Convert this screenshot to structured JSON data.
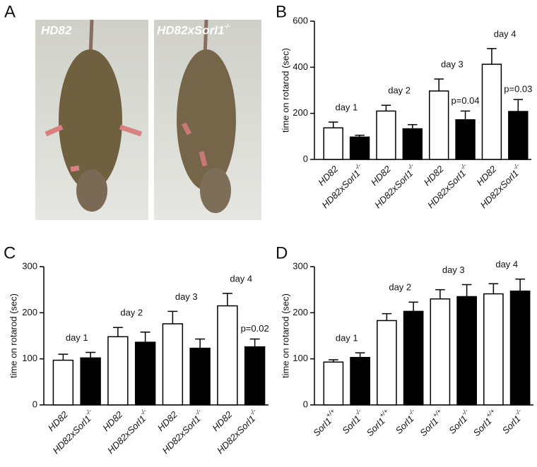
{
  "photo_panel": {
    "label": "A",
    "photos": [
      {
        "caption": "HD82"
      },
      {
        "caption": "HD82xSorl1-/-"
      }
    ]
  },
  "chart_data": [
    {
      "type": "bar",
      "panel_label": "B",
      "ylabel": "time on rotarod (sec)",
      "categories": [
        "HD82",
        "HD82xSorl1-/-",
        "HD82",
        "HD82xSorl1-/-",
        "HD82",
        "HD82xSorl1-/-",
        "HD82",
        "HD82xSorl1-/-"
      ],
      "values": [
        137,
        97,
        210,
        133,
        297,
        172,
        413,
        208
      ],
      "errors": [
        25,
        8,
        25,
        18,
        52,
        38,
        68,
        52
      ],
      "colors": [
        "#ffffff",
        "#000000",
        "#ffffff",
        "#000000",
        "#ffffff",
        "#000000",
        "#ffffff",
        "#000000"
      ],
      "group_labels": [
        "day 1",
        "day 2",
        "day 3",
        "day 4"
      ],
      "p_labels": [
        null,
        null,
        null,
        null,
        null,
        "p=0.04",
        null,
        "p=0.03"
      ],
      "ylim": [
        0,
        600
      ],
      "yticks": [
        0,
        200,
        400,
        600
      ]
    },
    {
      "type": "bar",
      "panel_label": "C",
      "ylabel": "time on rotarod (sec)",
      "categories": [
        "HD82",
        "HD82xSorl1-/-",
        "HD82",
        "HD82xSorl1-/-",
        "HD82",
        "HD82xSorl1-/-",
        "HD82",
        "HD82xSorl1-/-"
      ],
      "values": [
        97,
        102,
        148,
        136,
        176,
        123,
        215,
        126
      ],
      "errors": [
        13,
        12,
        20,
        22,
        27,
        20,
        27,
        17
      ],
      "colors": [
        "#ffffff",
        "#000000",
        "#ffffff",
        "#000000",
        "#ffffff",
        "#000000",
        "#ffffff",
        "#000000"
      ],
      "group_labels": [
        "day 1",
        "day 2",
        "day 3",
        "day 4"
      ],
      "p_labels": [
        null,
        null,
        null,
        null,
        null,
        null,
        null,
        "p=0.02"
      ],
      "ylim": [
        0,
        300
      ],
      "yticks": [
        0,
        100,
        200,
        300
      ]
    },
    {
      "type": "bar",
      "panel_label": "D",
      "ylabel": "time on rotarod (sec)",
      "categories": [
        "Sorl1+/+",
        "Sorl1-/-",
        "Sorl1+/+",
        "Sorl1-/-",
        "Sorl1+/+",
        "Sorl1-/-",
        "Sorl1+/+",
        "Sorl1-/-"
      ],
      "values": [
        93,
        103,
        183,
        203,
        230,
        235,
        241,
        247
      ],
      "errors": [
        5,
        10,
        15,
        20,
        20,
        26,
        22,
        26
      ],
      "colors": [
        "#ffffff",
        "#000000",
        "#ffffff",
        "#000000",
        "#ffffff",
        "#000000",
        "#ffffff",
        "#000000"
      ],
      "group_labels": [
        "day 1",
        "day 2",
        "day 3",
        "day 4"
      ],
      "ylim": [
        0,
        300
      ],
      "yticks": [
        0,
        100,
        200,
        300
      ]
    }
  ]
}
